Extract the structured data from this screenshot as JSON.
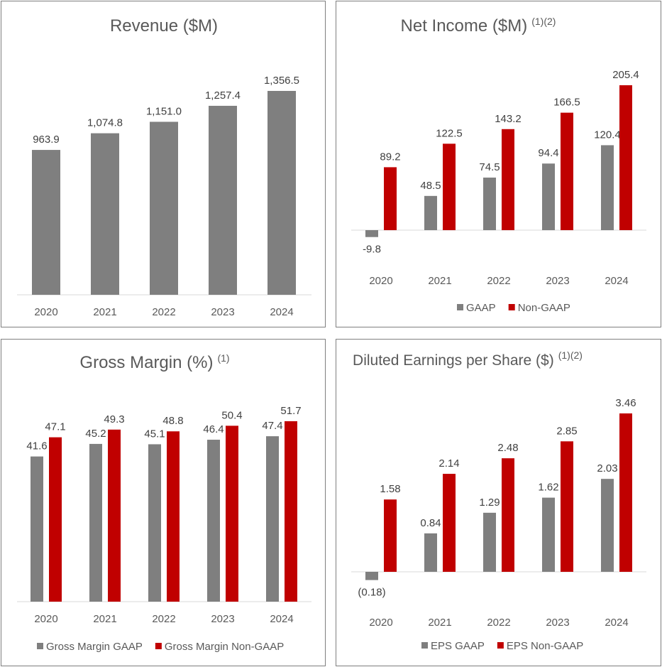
{
  "colors": {
    "gray": "#7f7f7f",
    "red": "#c00000",
    "axis": "#d9d9d9"
  },
  "chart_data": [
    {
      "id": "revenue",
      "type": "bar",
      "title": "Revenue ($M)",
      "title_sup": "",
      "categories": [
        "2020",
        "2021",
        "2022",
        "2023",
        "2024"
      ],
      "series": [
        {
          "name": "Revenue",
          "color": "#7f7f7f",
          "values": [
            963.9,
            1074.8,
            1151.0,
            1257.4,
            1356.5
          ],
          "labels": [
            "963.9",
            "1,074.8",
            "1,151.0",
            "1,257.4",
            "1,356.5"
          ]
        }
      ],
      "ylim": [
        0,
        1356.5
      ],
      "legend": "none"
    },
    {
      "id": "net-income",
      "type": "bar",
      "title": "Net Income ($M)",
      "title_sup": "(1)(2)",
      "categories": [
        "2020",
        "2021",
        "2022",
        "2023",
        "2024"
      ],
      "series": [
        {
          "name": "GAAP",
          "color": "#7f7f7f",
          "values": [
            -9.8,
            48.5,
            74.5,
            94.4,
            120.4
          ],
          "labels": [
            "-9.8",
            "48.5",
            "74.5",
            "94.4",
            "120.4"
          ]
        },
        {
          "name": "Non-GAAP",
          "color": "#c00000",
          "values": [
            89.2,
            122.5,
            143.2,
            166.5,
            205.4
          ],
          "labels": [
            "89.2",
            "122.5",
            "143.2",
            "166.5",
            "205.4"
          ]
        }
      ],
      "ylim": [
        -9.8,
        205.4
      ],
      "legend": "bottom"
    },
    {
      "id": "gross-margin",
      "type": "bar",
      "title": "Gross Margin (%)",
      "title_sup": "(1)",
      "categories": [
        "2020",
        "2021",
        "2022",
        "2023",
        "2024"
      ],
      "series": [
        {
          "name": "Gross Margin GAAP",
          "color": "#7f7f7f",
          "values": [
            41.6,
            45.2,
            45.1,
            46.4,
            47.4
          ],
          "labels": [
            "41.6",
            "45.2",
            "45.1",
            "46.4",
            "47.4"
          ]
        },
        {
          "name": "Gross Margin Non-GAAP",
          "color": "#c00000",
          "values": [
            47.1,
            49.3,
            48.8,
            50.4,
            51.7
          ],
          "labels": [
            "47.1",
            "49.3",
            "48.8",
            "50.4",
            "51.7"
          ]
        }
      ],
      "ylim": [
        0,
        51.7
      ],
      "legend": "bottom"
    },
    {
      "id": "eps",
      "type": "bar",
      "title": "Diluted Earnings per Share ($)",
      "title_sup": "(1)(2)",
      "categories": [
        "2020",
        "2021",
        "2022",
        "2023",
        "2024"
      ],
      "series": [
        {
          "name": "EPS GAAP",
          "color": "#7f7f7f",
          "values": [
            -0.18,
            0.84,
            1.29,
            1.62,
            2.03
          ],
          "labels": [
            "(0.18)",
            "0.84",
            "1.29",
            "1.62",
            "2.03"
          ]
        },
        {
          "name": "EPS Non-GAAP",
          "color": "#c00000",
          "values": [
            1.58,
            2.14,
            2.48,
            2.85,
            3.46
          ],
          "labels": [
            "1.58",
            "2.14",
            "2.48",
            "2.85",
            "3.46"
          ]
        }
      ],
      "ylim": [
        -0.18,
        3.46
      ],
      "legend": "bottom"
    }
  ]
}
